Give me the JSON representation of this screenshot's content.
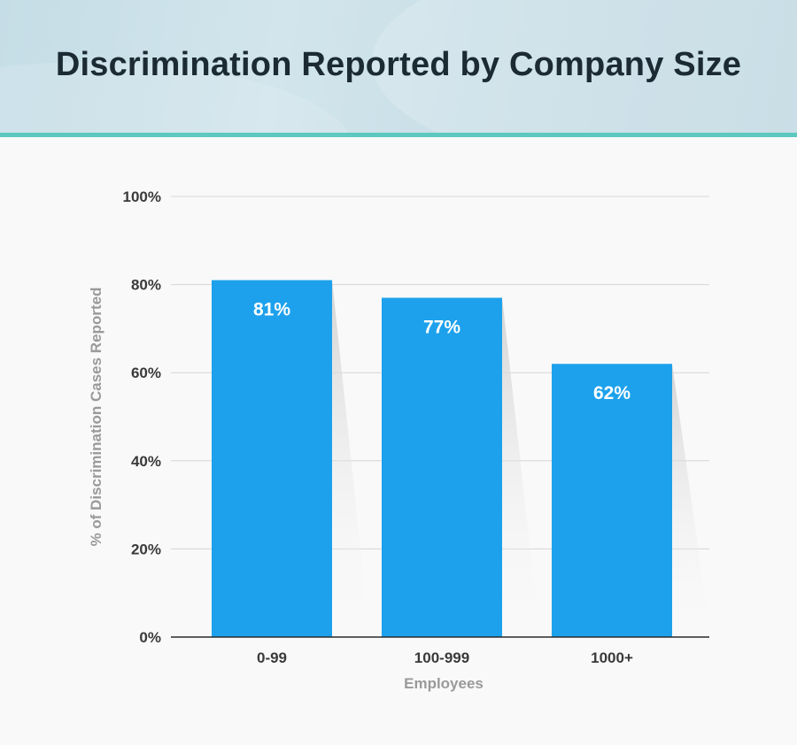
{
  "header": {
    "title": "Discrimination Reported by Company Size"
  },
  "colors": {
    "bar": "#1da1ec",
    "accent": "#5cc8c0",
    "grid": "#d6d6d6"
  },
  "chart_data": {
    "type": "bar",
    "title": "Discrimination Reported by Company Size",
    "categories": [
      "0-99",
      "100-999",
      "1000+"
    ],
    "values": [
      81,
      77,
      62
    ],
    "value_labels": [
      "81%",
      "77%",
      "62%"
    ],
    "xlabel": "Employees",
    "ylabel": "% of Discrimination Cases Reported",
    "ylim": [
      0,
      100
    ],
    "yticks": [
      0,
      20,
      40,
      60,
      80,
      100
    ],
    "ytick_labels": [
      "0%",
      "20%",
      "40%",
      "60%",
      "80%",
      "100%"
    ],
    "grid": true,
    "legend": "none"
  }
}
